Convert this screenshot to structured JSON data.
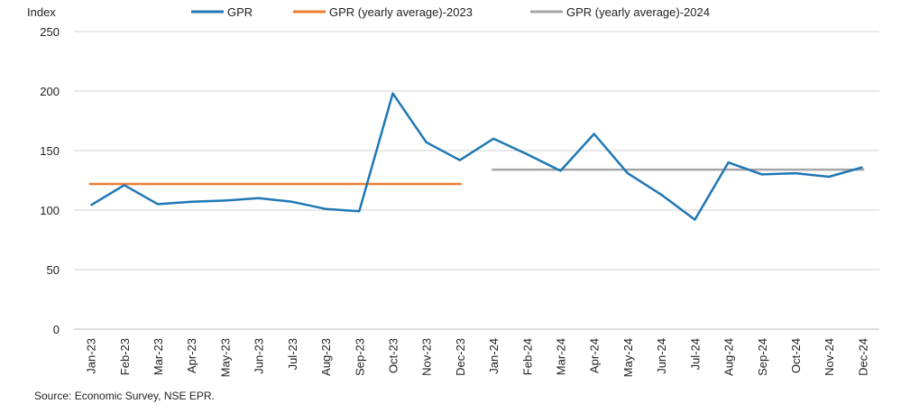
{
  "source": "Source: Economic Survey, NSE EPR.",
  "chart_data": {
    "type": "line",
    "ylabel": "Index",
    "ylim": [
      0,
      250
    ],
    "yticks": [
      0,
      50,
      100,
      150,
      200,
      250
    ],
    "grid": true,
    "legend_position": "top",
    "categories": [
      "Jan-23",
      "Feb-23",
      "Mar-23",
      "Apr-23",
      "May-23",
      "Jun-23",
      "Jul-23",
      "Aug-23",
      "Sep-23",
      "Oct-23",
      "Nov-23",
      "Dec-23",
      "Jan-24",
      "Feb-24",
      "Mar-24",
      "Apr-24",
      "May-24",
      "Jun-24",
      "Jul-24",
      "Aug-24",
      "Sep-24",
      "Oct-24",
      "Nov-24",
      "Dec-24"
    ],
    "series": [
      {
        "name": "GPR",
        "color": "#1f77b4",
        "values": [
          104,
          121,
          105,
          107,
          108,
          110,
          107,
          101,
          99,
          198,
          157,
          142,
          160,
          147,
          133,
          164,
          131,
          113,
          92,
          140,
          130,
          131,
          128,
          136
        ]
      },
      {
        "name": "GPR (yearly average)-2023",
        "color": "#ed7d31",
        "values": [
          122,
          122,
          122,
          122,
          122,
          122,
          122,
          122,
          122,
          122,
          122,
          122,
          null,
          null,
          null,
          null,
          null,
          null,
          null,
          null,
          null,
          null,
          null,
          null
        ]
      },
      {
        "name": "GPR (yearly average)-2024",
        "color": "#a5a5a5",
        "values": [
          null,
          null,
          null,
          null,
          null,
          null,
          null,
          null,
          null,
          null,
          null,
          null,
          134,
          134,
          134,
          134,
          134,
          134,
          134,
          134,
          134,
          134,
          134,
          134
        ]
      }
    ]
  }
}
